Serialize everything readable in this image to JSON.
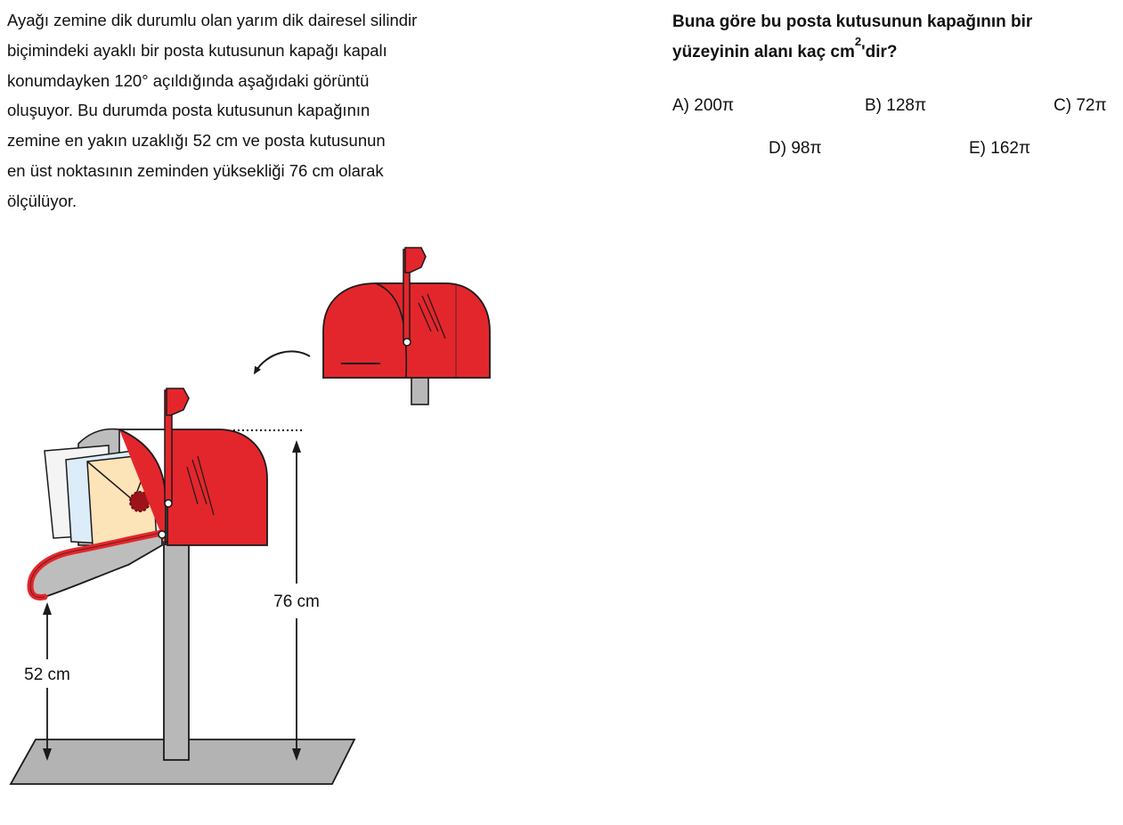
{
  "problem": {
    "lines": [
      "Ayağı zemine dik durumlu olan yarım dik dairesel silindir",
      "biçimindeki ayaklı bir posta kutusunun kapağı kapalı",
      "konumdayken 120° açıldığında aşağıdaki görüntü",
      "oluşuyor. Bu durumda posta kutusunun kapağının",
      "zemine en yakın uzaklığı 52 cm ve posta kutusunun",
      "en üst noktasının zeminden yüksekliği 76 cm olarak",
      "ölçülüyor."
    ]
  },
  "question": {
    "line1": "Buna göre bu posta kutusunun kapağının bir",
    "line2_prefix": "yüzeyinin alanı kaç cm",
    "exponent": "2",
    "line2_suffix": "'dir?"
  },
  "choices": {
    "a": "A) 200π",
    "b": "B) 128π",
    "c": "C) 72π",
    "d": "D) 98π",
    "e": "E) 162π"
  },
  "figure": {
    "height_label": "76 cm",
    "distance_label": "52 cm"
  },
  "colors": {
    "mailbox_red": "#e3262c",
    "outline": "#1a1a1a",
    "post_gray": "#b8b8b8",
    "ground_gray": "#b3b3b3",
    "envelope": "#fde3b8",
    "seal": "#9c1419"
  }
}
